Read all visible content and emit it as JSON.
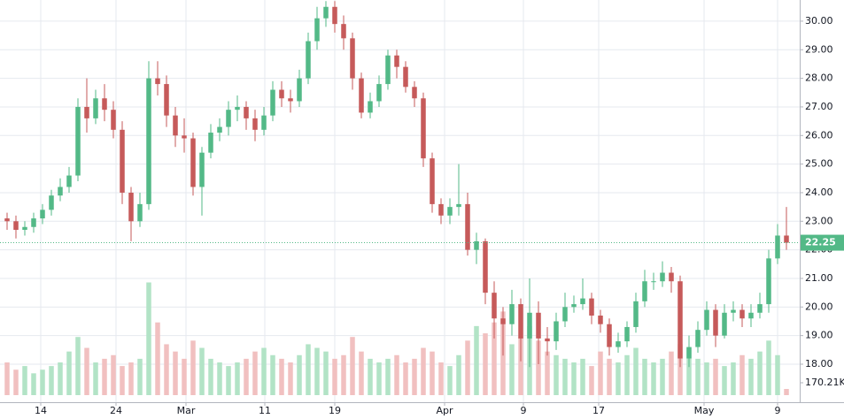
{
  "chart_data": {
    "type": "candlestick",
    "open": [
      23.1,
      23.0,
      22.7,
      22.8,
      23.1,
      23.4,
      23.9,
      24.2,
      24.6,
      27.0,
      26.6,
      27.3,
      26.9,
      26.2,
      24.0,
      23.0,
      23.6,
      28.0,
      27.8,
      26.7,
      26.0,
      25.9,
      24.2,
      25.4,
      26.1,
      26.3,
      26.9,
      27.0,
      26.6,
      26.2,
      26.7,
      27.6,
      27.3,
      27.2,
      28.0,
      29.3,
      30.1,
      30.5,
      29.9,
      29.4,
      28.0,
      26.8,
      27.2,
      27.8,
      28.8,
      28.4,
      27.7,
      27.3,
      25.2,
      23.6,
      23.2,
      23.5,
      23.6,
      22.0,
      22.3,
      20.5,
      19.6,
      19.4,
      20.1,
      18.9,
      19.8,
      18.9,
      18.8,
      19.5,
      20.0,
      20.1,
      20.3,
      19.7,
      19.4,
      18.6,
      18.8,
      19.3,
      20.2,
      20.9,
      20.9,
      21.2,
      20.9,
      18.2,
      18.6,
      19.2,
      19.9,
      19.0,
      19.8,
      19.9,
      19.6,
      19.8,
      20.1,
      21.7,
      22.5
    ],
    "high": [
      23.3,
      23.2,
      23.0,
      23.3,
      23.6,
      24.1,
      24.5,
      24.9,
      27.3,
      28.0,
      27.6,
      27.8,
      27.2,
      26.5,
      24.2,
      24.0,
      28.6,
      28.6,
      28.1,
      27.0,
      26.6,
      26.1,
      25.6,
      26.4,
      26.6,
      27.2,
      27.4,
      27.2,
      26.9,
      27.0,
      27.9,
      27.9,
      27.6,
      28.3,
      29.6,
      30.5,
      30.7,
      30.7,
      30.2,
      29.6,
      28.2,
      27.5,
      28.1,
      29.0,
      29.0,
      28.6,
      27.9,
      27.5,
      25.4,
      23.8,
      23.8,
      25.0,
      24.0,
      22.6,
      22.4,
      20.9,
      20.0,
      20.6,
      20.3,
      21.0,
      20.2,
      19.3,
      19.8,
      20.5,
      20.4,
      21.0,
      20.5,
      19.9,
      19.6,
      19.1,
      19.5,
      20.5,
      21.3,
      21.2,
      21.6,
      21.4,
      21.1,
      19.0,
      19.5,
      20.2,
      20.1,
      20.1,
      20.2,
      20.1,
      20.1,
      20.5,
      22.0,
      22.9,
      23.5
    ],
    "low": [
      22.7,
      22.4,
      22.5,
      22.6,
      22.9,
      23.2,
      23.7,
      24.0,
      24.4,
      26.1,
      26.4,
      26.5,
      25.9,
      23.6,
      22.3,
      22.8,
      23.4,
      27.4,
      26.3,
      25.6,
      25.4,
      23.9,
      23.2,
      25.2,
      25.8,
      26.0,
      26.5,
      26.2,
      25.8,
      26.0,
      26.5,
      27.0,
      26.8,
      27.0,
      27.8,
      29.0,
      29.8,
      29.6,
      29.0,
      27.6,
      26.6,
      26.6,
      27.0,
      27.6,
      28.0,
      27.5,
      27.0,
      24.9,
      23.3,
      22.9,
      22.9,
      23.2,
      21.8,
      21.5,
      20.1,
      18.9,
      18.3,
      19.0,
      18.1,
      17.9,
      18.0,
      18.3,
      18.5,
      19.3,
      19.8,
      19.9,
      19.4,
      19.1,
      18.3,
      18.4,
      18.6,
      19.1,
      20.0,
      20.6,
      20.7,
      20.5,
      17.9,
      17.9,
      18.4,
      19.0,
      18.6,
      18.9,
      19.5,
      19.3,
      19.3,
      19.6,
      19.8,
      21.5,
      22.0
    ],
    "close": [
      23.0,
      22.7,
      22.8,
      23.1,
      23.4,
      23.9,
      24.2,
      24.6,
      27.0,
      26.6,
      27.3,
      26.9,
      26.2,
      24.0,
      23.0,
      23.6,
      28.0,
      27.8,
      26.7,
      26.0,
      25.9,
      24.2,
      25.4,
      26.1,
      26.3,
      26.9,
      27.0,
      26.6,
      26.2,
      26.7,
      27.6,
      27.3,
      27.2,
      28.0,
      29.3,
      30.1,
      30.5,
      29.9,
      29.4,
      28.0,
      26.8,
      27.2,
      27.8,
      28.8,
      28.4,
      27.7,
      27.3,
      25.2,
      23.6,
      23.2,
      23.5,
      23.6,
      22.0,
      22.3,
      20.5,
      19.6,
      19.4,
      20.1,
      18.9,
      19.8,
      18.9,
      18.8,
      19.5,
      20.0,
      20.1,
      20.3,
      19.7,
      19.4,
      18.6,
      18.8,
      19.3,
      20.2,
      20.9,
      20.9,
      21.2,
      20.9,
      18.2,
      18.6,
      19.2,
      19.9,
      19.0,
      19.8,
      19.9,
      19.6,
      19.8,
      20.1,
      21.7,
      22.5,
      22.25
    ],
    "volume": {
      "values": [
        900,
        700,
        800,
        600,
        700,
        800,
        900,
        1200,
        1600,
        1300,
        900,
        1000,
        1100,
        800,
        900,
        1000,
        3100,
        2000,
        1400,
        1200,
        1000,
        1500,
        1300,
        1000,
        900,
        800,
        900,
        1000,
        1200,
        1300,
        1100,
        1000,
        900,
        1100,
        1400,
        1300,
        1200,
        1000,
        1100,
        1600,
        1200,
        1000,
        900,
        1000,
        1100,
        900,
        1000,
        1300,
        1200,
        900,
        800,
        1100,
        1500,
        1900,
        1700,
        2000,
        2300,
        1400,
        1600,
        1900,
        1500,
        1200,
        1100,
        1000,
        900,
        1000,
        800,
        1200,
        1000,
        900,
        1100,
        1300,
        1000,
        900,
        1000,
        1200,
        1400,
        1300,
        1000,
        900,
        1000,
        800,
        900,
        1100,
        1000,
        1200,
        1500,
        1100,
        170.21
      ],
      "last_label": "170.21K",
      "vlim": [
        0,
        8000
      ],
      "up_color": "#b2e3c6",
      "down_color": "#f1c0c0"
    },
    "up_color": "#53b987",
    "down_color": "#c65a5a",
    "last_price": 22.25,
    "ylim": [
      16.67,
      30.74
    ],
    "yticks": [
      {
        "value": 18,
        "label": "18.00"
      },
      {
        "value": 19,
        "label": "19.00"
      },
      {
        "value": 20,
        "label": "20.00"
      },
      {
        "value": 21,
        "label": "21.00"
      },
      {
        "value": 22,
        "label": "22.00"
      },
      {
        "value": 23,
        "label": "23.00"
      },
      {
        "value": 24,
        "label": "24.00"
      },
      {
        "value": 25,
        "label": "25.00"
      },
      {
        "value": 26,
        "label": "26.00"
      },
      {
        "value": 27,
        "label": "27.00"
      },
      {
        "value": 28,
        "label": "28.00"
      },
      {
        "value": 29,
        "label": "29.00"
      },
      {
        "value": 30,
        "label": "30.00"
      }
    ],
    "xlim": [
      -0.8,
      89.5
    ],
    "xticks": [
      {
        "value": 3.8,
        "label": "14"
      },
      {
        "value": 12.3,
        "label": "24"
      },
      {
        "value": 20.2,
        "label": "Mar"
      },
      {
        "value": 29.1,
        "label": "11"
      },
      {
        "value": 37,
        "label": "19"
      },
      {
        "value": 49.4,
        "label": "Apr"
      },
      {
        "value": 58.3,
        "label": "9"
      },
      {
        "value": 66.8,
        "label": "17"
      },
      {
        "value": 78.7,
        "label": "May"
      },
      {
        "value": 87,
        "label": "9"
      }
    ],
    "grid": true
  }
}
